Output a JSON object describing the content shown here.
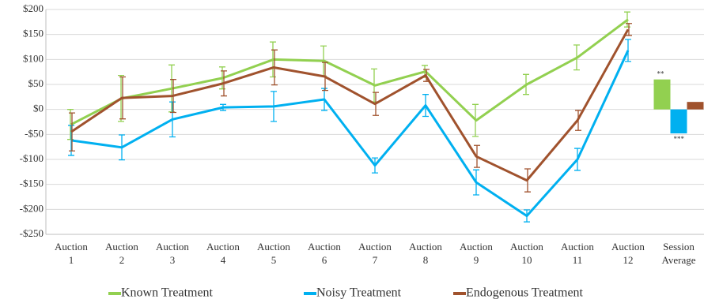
{
  "chart_data": {
    "type": "line",
    "bar_last_category": true,
    "categories": [
      [
        "Auction",
        "1"
      ],
      [
        "Auction",
        "2"
      ],
      [
        "Auction",
        "3"
      ],
      [
        "Auction",
        "4"
      ],
      [
        "Auction",
        "5"
      ],
      [
        "Auction",
        "6"
      ],
      [
        "Auction",
        "7"
      ],
      [
        "Auction",
        "8"
      ],
      [
        "Auction",
        "9"
      ],
      [
        "Auction",
        "10"
      ],
      [
        "Auction",
        "11"
      ],
      [
        "Auction",
        "12"
      ],
      [
        "Session",
        "Average"
      ]
    ],
    "ylim": [
      -250,
      200
    ],
    "yticks": [
      {
        "value": 200,
        "label": "$200"
      },
      {
        "value": 150,
        "label": "$150"
      },
      {
        "value": 100,
        "label": "$100"
      },
      {
        "value": 50,
        "label": "$50"
      },
      {
        "value": 0,
        "label": "$0"
      },
      {
        "value": -50,
        "label": "-$50"
      },
      {
        "value": -100,
        "label": "-$100"
      },
      {
        "value": -150,
        "label": "-$150"
      },
      {
        "value": -200,
        "label": "-$200"
      },
      {
        "value": -250,
        "label": "-$250"
      }
    ],
    "grid": true,
    "legend": "bottom",
    "series": [
      {
        "name": "Known Treatment",
        "color": "#92d050",
        "annotation": "**",
        "values": [
          -30,
          22,
          42,
          63,
          100,
          97,
          48,
          76,
          -22,
          50,
          104,
          180,
          60
        ],
        "errors": [
          30,
          46,
          47,
          22,
          35,
          30,
          33,
          12,
          32,
          20,
          25,
          15,
          null
        ]
      },
      {
        "name": "Noisy Treatment",
        "color": "#00b0f0",
        "annotation": "***",
        "values": [
          -62,
          -76,
          -20,
          4,
          6,
          20,
          -112,
          8,
          -146,
          -213,
          -100,
          118,
          -48
        ],
        "errors": [
          30,
          25,
          35,
          6,
          30,
          22,
          15,
          22,
          25,
          12,
          22,
          22,
          null
        ]
      },
      {
        "name": "Endogenous Treatment",
        "color": "#a0522d",
        "values": [
          -45,
          23,
          27,
          52,
          84,
          66,
          11,
          68,
          -94,
          -142,
          -22,
          160,
          15
        ],
        "errors": [
          38,
          42,
          33,
          25,
          35,
          28,
          23,
          12,
          22,
          23,
          20,
          12,
          null
        ]
      }
    ]
  }
}
